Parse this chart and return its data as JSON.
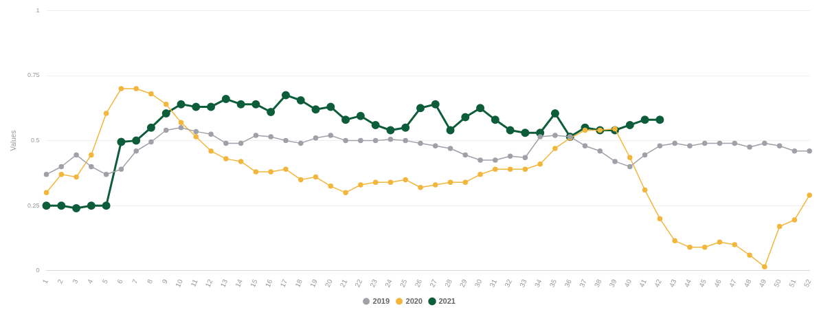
{
  "chart_data": {
    "type": "line",
    "ylabel": "Values",
    "categories": [
      "1",
      "2",
      "3",
      "4",
      "5",
      "6",
      "7",
      "8",
      "9",
      "10",
      "11",
      "12",
      "13",
      "14",
      "15",
      "16",
      "17",
      "18",
      "19",
      "20",
      "21",
      "22",
      "23",
      "24",
      "25",
      "26",
      "27",
      "28",
      "29",
      "30",
      "31",
      "32",
      "33",
      "34",
      "35",
      "36",
      "37",
      "38",
      "39",
      "40",
      "41",
      "42",
      "43",
      "44",
      "45",
      "46",
      "47",
      "48",
      "49",
      "50",
      "51",
      "52"
    ],
    "series": [
      {
        "name": "2019",
        "color": "#a0a0a8",
        "values": [
          0.37,
          0.4,
          0.445,
          0.4,
          0.37,
          0.39,
          0.46,
          0.495,
          0.54,
          0.55,
          0.535,
          0.525,
          0.49,
          0.49,
          0.52,
          0.515,
          0.5,
          0.49,
          0.51,
          0.52,
          0.5,
          0.5,
          0.5,
          0.505,
          0.5,
          0.49,
          0.48,
          0.47,
          0.445,
          0.425,
          0.425,
          0.44,
          0.435,
          0.515,
          0.52,
          0.515,
          0.48,
          0.46,
          0.42,
          0.4,
          0.445,
          0.48,
          0.49,
          0.48,
          0.49,
          0.49,
          0.49,
          0.475,
          0.49,
          0.48,
          0.46,
          0.46
        ]
      },
      {
        "name": "2020",
        "color": "#f2b63c",
        "values": [
          0.3,
          0.37,
          0.36,
          0.445,
          0.605,
          0.7,
          0.7,
          0.68,
          0.64,
          0.57,
          0.515,
          0.46,
          0.43,
          0.42,
          0.38,
          0.38,
          0.39,
          0.35,
          0.36,
          0.325,
          0.3,
          0.33,
          0.34,
          0.34,
          0.35,
          0.32,
          0.33,
          0.34,
          0.34,
          0.37,
          0.39,
          0.39,
          0.39,
          0.41,
          0.47,
          0.51,
          0.54,
          0.54,
          0.545,
          0.435,
          0.31,
          0.2,
          0.115,
          0.09,
          0.09,
          0.11,
          0.1,
          0.06,
          0.015,
          0.17,
          0.195,
          0.29
        ]
      },
      {
        "name": "2021",
        "color": "#0d5c3a",
        "values": [
          0.25,
          0.25,
          0.24,
          0.25,
          0.25,
          0.495,
          0.5,
          0.55,
          0.605,
          0.64,
          0.63,
          0.63,
          0.66,
          0.64,
          0.64,
          0.61,
          0.675,
          0.655,
          0.62,
          0.63,
          0.58,
          0.595,
          0.56,
          0.54,
          0.55,
          0.625,
          0.64,
          0.54,
          0.59,
          0.625,
          0.58,
          0.54,
          0.53,
          0.53,
          0.605,
          0.515,
          0.55,
          0.54,
          0.54,
          0.56,
          0.58,
          0.58,
          null,
          null,
          null,
          null,
          null,
          null,
          null,
          null,
          null,
          null
        ]
      }
    ],
    "ylim": [
      0,
      1
    ],
    "yticks": [
      0,
      0.25,
      0.5,
      0.75,
      1
    ],
    "grid": "y",
    "legend": "bottom",
    "marker": "circle",
    "line_style": "solid"
  }
}
